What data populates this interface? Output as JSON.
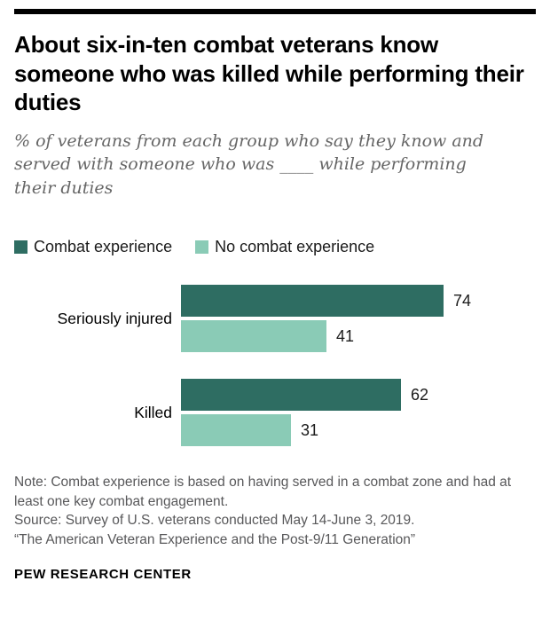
{
  "header": {
    "title": "About six-in-ten combat veterans know someone who was killed while performing their duties",
    "subtitle": "% of veterans from each group who say they know and served with someone who was ____ while performing their duties"
  },
  "chart_data": {
    "type": "bar",
    "orientation": "horizontal",
    "categories": [
      "Seriously injured",
      "Killed"
    ],
    "series": [
      {
        "name": "Combat experience",
        "color": "#2e6d62",
        "values": [
          74,
          62
        ]
      },
      {
        "name": "No combat experience",
        "color": "#8acbb6",
        "values": [
          41,
          31
        ]
      }
    ],
    "scale_max": 100,
    "value_labels": true,
    "legend_position": "top",
    "grid": false
  },
  "footer": {
    "note": "Note: Combat experience is based on having served in a combat zone and had at least one key combat engagement.",
    "source": "Source: Survey of U.S. veterans conducted May 14-June 3, 2019.",
    "report": "“The American Veteran Experience and the Post-9/11 Generation”",
    "brand": "PEW RESEARCH CENTER"
  }
}
